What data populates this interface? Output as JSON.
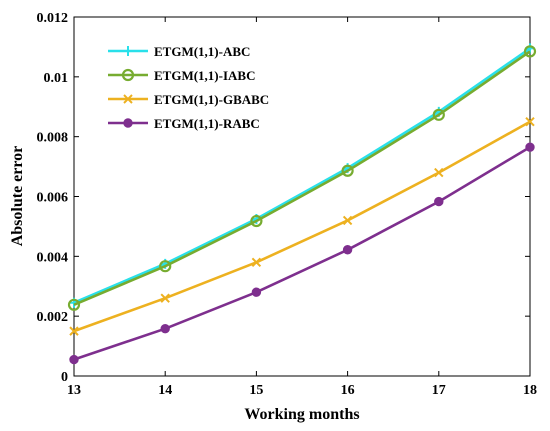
{
  "chart_data": {
    "type": "line",
    "title": "",
    "xlabel": "Working months",
    "ylabel": "Absolute error",
    "x": [
      13,
      14,
      15,
      16,
      17,
      18
    ],
    "xlim": [
      13,
      18
    ],
    "ylim": [
      0,
      0.012
    ],
    "xticks": [
      "13",
      "14",
      "15",
      "16",
      "17",
      "18"
    ],
    "yticks": [
      "0",
      "0.002",
      "0.004",
      "0.006",
      "0.008",
      "0.01",
      "0.012"
    ],
    "grid": false,
    "legend_position": "top-left",
    "series": [
      {
        "name": "ETGM(1,1)-ABC",
        "color": "#29e0ea",
        "marker": "plus",
        "values": [
          0.00245,
          0.00375,
          0.00525,
          0.00695,
          0.00883,
          0.01095
        ]
      },
      {
        "name": "ETGM(1,1)-IABC",
        "color": "#77ac30",
        "marker": "circle",
        "values": [
          0.00238,
          0.00367,
          0.00518,
          0.00686,
          0.00873,
          0.01085
        ]
      },
      {
        "name": "ETGM(1,1)-GBABC",
        "color": "#edb120",
        "marker": "x",
        "values": [
          0.0015,
          0.0026,
          0.0038,
          0.0052,
          0.0068,
          0.0085
        ]
      },
      {
        "name": "ETGM(1,1)-RABC",
        "color": "#7e2f8e",
        "marker": "dot",
        "values": [
          0.00055,
          0.00158,
          0.0028,
          0.00422,
          0.00583,
          0.00765
        ]
      }
    ]
  }
}
